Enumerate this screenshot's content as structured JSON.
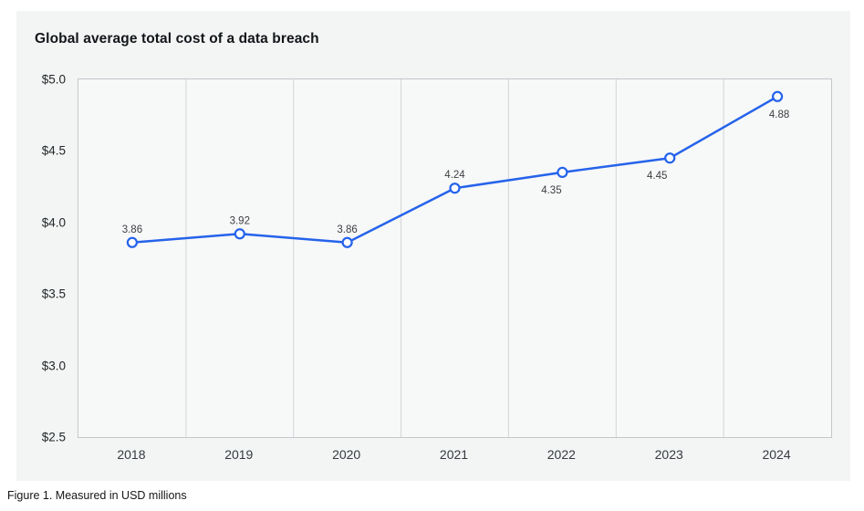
{
  "card": {
    "title": "Global average total cost of a data breach"
  },
  "caption": "Figure 1. Measured in USD millions",
  "chart_data": {
    "type": "line",
    "title": "Global average total cost of a data breach",
    "categories": [
      "2018",
      "2019",
      "2020",
      "2021",
      "2022",
      "2023",
      "2024"
    ],
    "values": [
      3.86,
      3.92,
      3.86,
      4.24,
      4.35,
      4.45,
      4.88
    ],
    "point_labels": [
      "3.86",
      "3.92",
      "3.86",
      "4.24",
      "4.35",
      "4.45",
      "4.88"
    ],
    "label_positions": [
      "above",
      "above",
      "above",
      "above",
      "below",
      "below",
      "below"
    ],
    "label_dx": [
      0,
      0,
      0,
      0,
      -12,
      -14,
      2
    ],
    "y_ticks": [
      {
        "label": "$5.0",
        "value": 5.0
      },
      {
        "label": "$4.5",
        "value": 4.5
      },
      {
        "label": "$4.0",
        "value": 4.0
      },
      {
        "label": "$3.5",
        "value": 3.5
      },
      {
        "label": "$3.0",
        "value": 3.0
      },
      {
        "label": "$2.5",
        "value": 2.5
      }
    ],
    "ylim": [
      2.5,
      5.0
    ],
    "xlabel": "",
    "ylabel": "",
    "unit": "USD millions",
    "legend": "none",
    "grid": "vertical-only",
    "line_color": "#2563eb",
    "marker_fill": "#ffffff",
    "gridline_color": "#d2d5d7",
    "value_label_color": "#3c4043",
    "plot_bg": "#f7f8f8",
    "card_bg": "#f3f4f4"
  }
}
